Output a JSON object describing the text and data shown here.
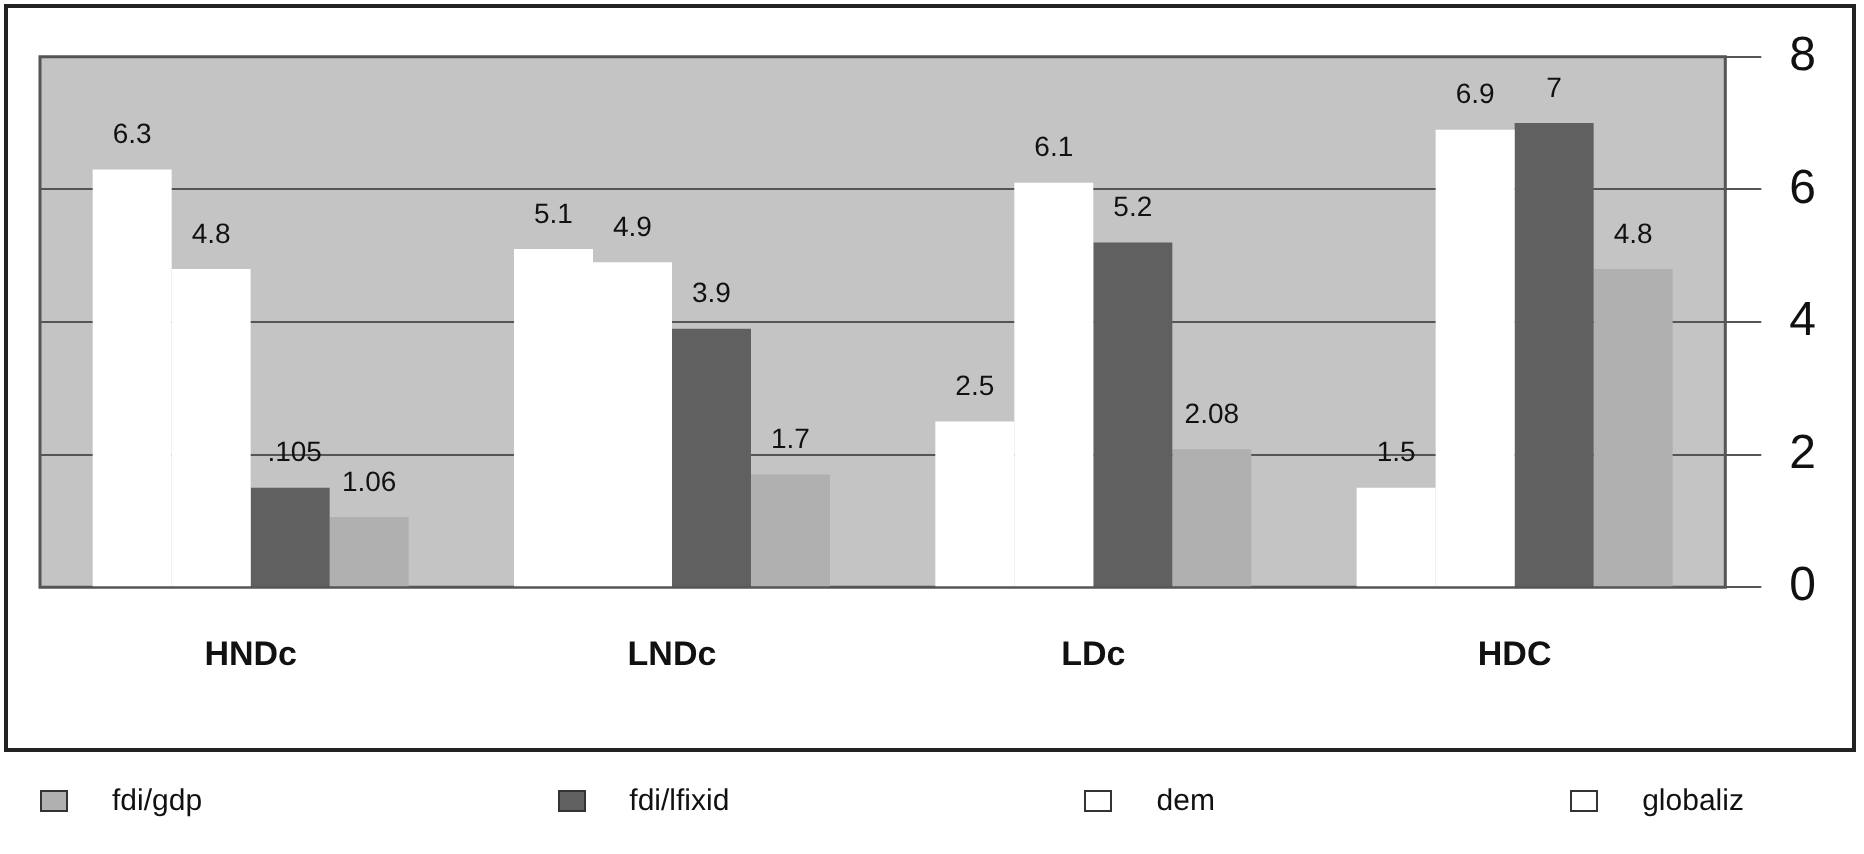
{
  "chart_data": {
    "type": "bar",
    "categories": [
      "HNDc",
      "LNDc",
      "LDc",
      "HDC"
    ],
    "series": [
      {
        "name": "globaliz",
        "color": "#ffffff",
        "values": [
          6.3,
          5.1,
          2.5,
          1.5
        ],
        "value_labels": [
          "6.3",
          "5.1",
          "2.5",
          "1.5"
        ]
      },
      {
        "name": "dem",
        "color": "#ffffff",
        "values": [
          4.8,
          4.9,
          6.1,
          6.9
        ],
        "value_labels": [
          "4.8",
          "4.9",
          "6.1",
          "6.9"
        ]
      },
      {
        "name": "fdi/lfixid",
        "color": "#606060",
        "values": [
          1.5,
          3.9,
          5.2,
          7
        ],
        "value_labels": [
          null,
          "3.9",
          "5.2",
          "7"
        ]
      },
      {
        "name": "fdi/gdp",
        "color": "#b0b0b0",
        "values": [
          1.06,
          1.7,
          2.08,
          4.8
        ],
        "value_labels": [
          "1.06",
          "1.7",
          "2.08",
          "4.8"
        ]
      }
    ],
    "annotations": [
      {
        "text": ".105",
        "x": "HNDc",
        "y": 1.5
      }
    ],
    "ylim": [
      0,
      8
    ],
    "yticks": [
      0,
      2,
      4,
      6,
      8
    ],
    "grid": "y",
    "legend": "bottom"
  }
}
